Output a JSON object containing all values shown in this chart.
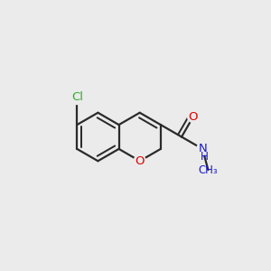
{
  "background_color": "#ebebeb",
  "bond_color": "#2a2a2a",
  "bond_width": 1.6,
  "atom_colors": {
    "O": "#dd0000",
    "N": "#1a1acc",
    "Cl": "#33aa33",
    "C": "#2a2a2a"
  },
  "figsize": [
    3.0,
    3.0
  ],
  "dpi": 100,
  "xlim": [
    0.0,
    1.0
  ],
  "ylim": [
    0.1,
    0.9
  ]
}
